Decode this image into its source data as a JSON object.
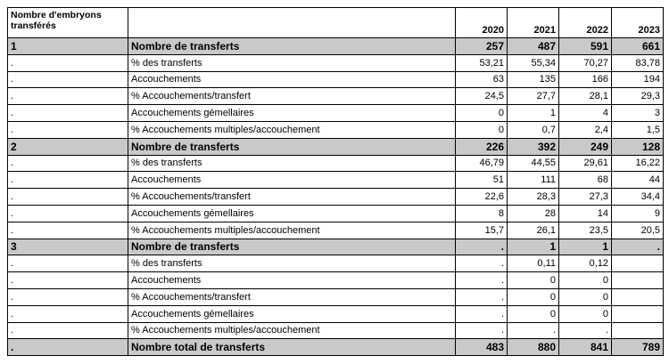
{
  "table": {
    "header": {
      "first": "Nombre d'embryons transférés",
      "years": [
        "2020",
        "2021",
        "2022",
        "2023"
      ]
    },
    "rows": [
      {
        "highlight": true,
        "group": "1",
        "label": "Nombre de transferts",
        "values": [
          "257",
          "487",
          "591",
          "661"
        ]
      },
      {
        "highlight": false,
        "group": ".",
        "label": "% des transferts",
        "values": [
          "53,21",
          "55,34",
          "70,27",
          "83,78"
        ]
      },
      {
        "highlight": false,
        "group": ".",
        "label": "Accouchements",
        "values": [
          "63",
          "135",
          "166",
          "194"
        ]
      },
      {
        "highlight": false,
        "group": ".",
        "label": "% Accouchements/transfert",
        "values": [
          "24,5",
          "27,7",
          "28,1",
          "29,3"
        ]
      },
      {
        "highlight": false,
        "group": ".",
        "label": "Accouchements gémellaires",
        "values": [
          "0",
          "1",
          "4",
          "3"
        ]
      },
      {
        "highlight": false,
        "group": ".",
        "label": "% Accouchements multiples/accouchement",
        "values": [
          "0",
          "0,7",
          "2,4",
          "1,5"
        ]
      },
      {
        "highlight": true,
        "group": "2",
        "label": "Nombre de transferts",
        "values": [
          "226",
          "392",
          "249",
          "128"
        ]
      },
      {
        "highlight": false,
        "group": ".",
        "label": "% des transferts",
        "values": [
          "46,79",
          "44,55",
          "29,61",
          "16,22"
        ]
      },
      {
        "highlight": false,
        "group": ".",
        "label": "Accouchements",
        "values": [
          "51",
          "111",
          "68",
          "44"
        ]
      },
      {
        "highlight": false,
        "group": ".",
        "label": "% Accouchements/transfert",
        "values": [
          "22,6",
          "28,3",
          "27,3",
          "34,4"
        ]
      },
      {
        "highlight": false,
        "group": ".",
        "label": "Accouchements gémellaires",
        "values": [
          "8",
          "28",
          "14",
          "9"
        ]
      },
      {
        "highlight": false,
        "group": ".",
        "label": "% Accouchements multiples/accouchement",
        "values": [
          "15,7",
          "26,1",
          "23,5",
          "20,5"
        ]
      },
      {
        "highlight": true,
        "group": "3",
        "label": "Nombre de transferts",
        "values": [
          ".",
          "1",
          "1",
          "."
        ]
      },
      {
        "highlight": false,
        "group": ".",
        "label": "% des transferts",
        "values": [
          ".",
          "0,11",
          "0,12",
          null
        ]
      },
      {
        "highlight": false,
        "group": ".",
        "label": "Accouchements",
        "values": [
          ".",
          "0",
          "0",
          null
        ]
      },
      {
        "highlight": false,
        "group": ".",
        "label": "% Accouchements/transfert",
        "values": [
          ".",
          "0",
          "0",
          null
        ]
      },
      {
        "highlight": false,
        "group": ".",
        "label": "Accouchements gémellaires",
        "values": [
          ".",
          "0",
          "0",
          null
        ]
      },
      {
        "highlight": false,
        "group": ".",
        "label": "% Accouchements multiples/accouchement",
        "values": [
          ".",
          ".",
          ".",
          null
        ]
      },
      {
        "highlight": true,
        "group": ".",
        "label": "Nombre total de transferts",
        "values": [
          "483",
          "880",
          "841",
          "789"
        ]
      }
    ]
  }
}
